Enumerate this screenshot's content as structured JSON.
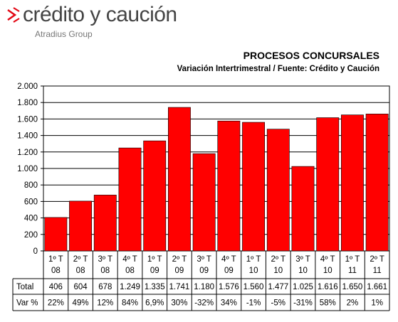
{
  "brand": {
    "name": "crédito y caución",
    "tagline": "Atradius Group",
    "accent_color": "#e30613",
    "text_color": "#444444"
  },
  "chart_data": {
    "type": "bar",
    "title": "PROCESOS CONCURSALES",
    "subtitle": "Variación Intertrimestral / Fuente: Crédito y Caución",
    "categories": [
      [
        "1º T",
        "08"
      ],
      [
        "2º T",
        "08"
      ],
      [
        "3º T",
        "08"
      ],
      [
        "4º T",
        "08"
      ],
      [
        "1º T",
        "09"
      ],
      [
        "2º T",
        "09"
      ],
      [
        "3º T",
        "09"
      ],
      [
        "4º T",
        "09"
      ],
      [
        "1º T",
        "10"
      ],
      [
        "2º T",
        "10"
      ],
      [
        "3º T",
        "10"
      ],
      [
        "4º T",
        "10"
      ],
      [
        "1º T",
        "11"
      ],
      [
        "2º T",
        "11"
      ]
    ],
    "values": [
      406,
      604,
      678,
      1249,
      1335,
      1741,
      1180,
      1576,
      1560,
      1477,
      1025,
      1616,
      1650,
      1661
    ],
    "ylim": [
      0,
      2000
    ],
    "yticks": [
      0,
      200,
      400,
      600,
      800,
      1000,
      1200,
      1400,
      1600,
      1800,
      2000
    ],
    "ytick_labels": [
      "0",
      "200",
      "400",
      "600",
      "800",
      "1.000",
      "1.200",
      "1.400",
      "1.600",
      "1.800",
      "2.000"
    ],
    "bar_color": "#ff0000",
    "grid": true,
    "table": {
      "rows": [
        {
          "label": "Total",
          "cells": [
            "406",
            "604",
            "678",
            "1.249",
            "1.335",
            "1.741",
            "1.180",
            "1.576",
            "1.560",
            "1.477",
            "1.025",
            "1.616",
            "1.650",
            "1.661"
          ]
        },
        {
          "label": "Var %",
          "cells": [
            "22%",
            "49%",
            "12%",
            "84%",
            "6,9%",
            "30%",
            "-32%",
            "34%",
            "-1%",
            "-5%",
            "-31%",
            "58%",
            "2%",
            "1%"
          ]
        }
      ]
    }
  }
}
